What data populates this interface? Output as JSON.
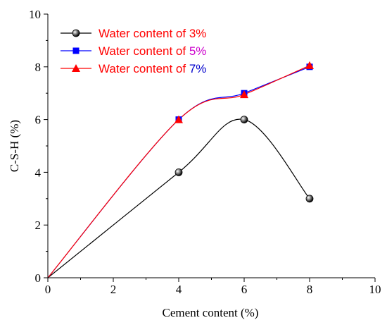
{
  "chart_data": {
    "type": "line",
    "title": "",
    "xlabel": "Cement content (%)",
    "ylabel": "C-S-H (%)",
    "xlim": [
      0,
      10
    ],
    "ylim": [
      0,
      10
    ],
    "x_ticks": [
      "0",
      "2",
      "4",
      "6",
      "8",
      "10"
    ],
    "y_ticks": [
      "0",
      "2",
      "4",
      "6",
      "8",
      "10"
    ],
    "grid": false,
    "legend_position": "top-left",
    "series": [
      {
        "legend_prefix": "Water content of ",
        "legend_value": "3%",
        "prefix_color": "#ff0000",
        "value_color": "#ff0000",
        "line_color": "#000000",
        "marker": "sphere",
        "x": [
          0,
          4,
          6,
          8
        ],
        "y": [
          0,
          4,
          6,
          3
        ]
      },
      {
        "legend_prefix": "Water content of ",
        "legend_value": "5%",
        "prefix_color": "#ff0000",
        "value_color": "#cc00cc",
        "line_color": "#0000ff",
        "marker": "square",
        "x": [
          0,
          4,
          6,
          8
        ],
        "y": [
          0,
          6,
          7,
          8
        ]
      },
      {
        "legend_prefix": "Water content of ",
        "legend_value": "7%",
        "prefix_color": "#ff0000",
        "value_color": "#0000cc",
        "line_color": "#ff0000",
        "marker": "triangle",
        "x": [
          0,
          4,
          6,
          8
        ],
        "y": [
          0,
          6,
          6.95,
          8.05
        ]
      }
    ]
  }
}
